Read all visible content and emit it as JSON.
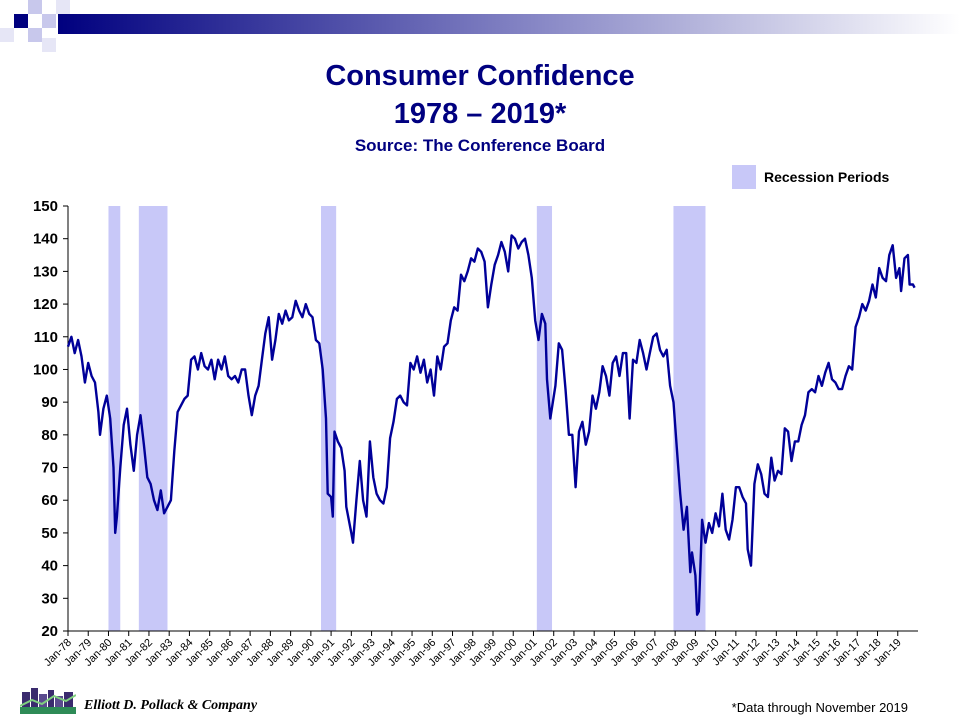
{
  "colors": {
    "title": "#000080",
    "line": "#000099",
    "recession": "#c8c8f8",
    "bar_gradient_start": "#00007f"
  },
  "header": {
    "title_line1": "Consumer Confidence",
    "title_line2": "1978 – 2019*",
    "subtitle": "Source: The Conference Board"
  },
  "legend": {
    "label": "Recession Periods"
  },
  "footer": {
    "company": "Elliott D. Pollack & Company",
    "note": "*Data through November 2019"
  },
  "chart_data": {
    "type": "line",
    "title": "Consumer Confidence 1978 – 2019*",
    "xlabel": "",
    "ylabel": "",
    "ylim": [
      20,
      150
    ],
    "xlim": [
      "1978-01",
      "2019-11"
    ],
    "yticks": [
      20,
      30,
      40,
      50,
      60,
      70,
      80,
      90,
      100,
      110,
      120,
      130,
      140,
      150
    ],
    "xtick_labels": [
      "Jan-78",
      "Jan-79",
      "Jan-80",
      "Jan-81",
      "Jan-82",
      "Jan-83",
      "Jan-84",
      "Jan-85",
      "Jan-86",
      "Jan-87",
      "Jan-88",
      "Jan-89",
      "Jan-90",
      "Jan-91",
      "Jan-92",
      "Jan-93",
      "Jan-94",
      "Jan-95",
      "Jan-96",
      "Jan-97",
      "Jan-98",
      "Jan-99",
      "Jan-00",
      "Jan-01",
      "Jan-02",
      "Jan-03",
      "Jan-04",
      "Jan-05",
      "Jan-06",
      "Jan-07",
      "Jan-08",
      "Jan-09",
      "Jan-10",
      "Jan-11",
      "Jan-12",
      "Jan-13",
      "Jan-14",
      "Jan-15",
      "Jan-16",
      "Jan-17",
      "Jan-18",
      "Jan-19"
    ],
    "grid": false,
    "legend": "top-right",
    "recessions": [
      {
        "start": "1980-01",
        "end": "1980-07"
      },
      {
        "start": "1981-07",
        "end": "1982-11"
      },
      {
        "start": "1990-07",
        "end": "1991-03"
      },
      {
        "start": "2001-03",
        "end": "2001-11"
      },
      {
        "start": "2007-12",
        "end": "2009-06"
      }
    ],
    "series": [
      {
        "points": [
          [
            "1978-01",
            107
          ],
          [
            "1978-03",
            110
          ],
          [
            "1978-05",
            105
          ],
          [
            "1978-07",
            109
          ],
          [
            "1978-09",
            104
          ],
          [
            "1978-11",
            96
          ],
          [
            "1979-01",
            102
          ],
          [
            "1979-03",
            98
          ],
          [
            "1979-05",
            96
          ],
          [
            "1979-07",
            87
          ],
          [
            "1979-08",
            80
          ],
          [
            "1979-10",
            88
          ],
          [
            "1979-12",
            92
          ],
          [
            "1980-02",
            85
          ],
          [
            "1980-04",
            70
          ],
          [
            "1980-05",
            50
          ],
          [
            "1980-06",
            55
          ],
          [
            "1980-08",
            70
          ],
          [
            "1980-10",
            83
          ],
          [
            "1980-12",
            88
          ],
          [
            "1981-02",
            77
          ],
          [
            "1981-04",
            69
          ],
          [
            "1981-06",
            80
          ],
          [
            "1981-08",
            86
          ],
          [
            "1981-10",
            77
          ],
          [
            "1981-12",
            67
          ],
          [
            "1982-02",
            65
          ],
          [
            "1982-04",
            60
          ],
          [
            "1982-06",
            57
          ],
          [
            "1982-08",
            63
          ],
          [
            "1982-10",
            56
          ],
          [
            "1982-12",
            58
          ],
          [
            "1983-02",
            60
          ],
          [
            "1983-04",
            75
          ],
          [
            "1983-06",
            87
          ],
          [
            "1983-08",
            89
          ],
          [
            "1983-10",
            91
          ],
          [
            "1983-12",
            92
          ],
          [
            "1984-02",
            103
          ],
          [
            "1984-04",
            104
          ],
          [
            "1984-06",
            100
          ],
          [
            "1984-08",
            105
          ],
          [
            "1984-10",
            101
          ],
          [
            "1984-12",
            100
          ],
          [
            "1985-02",
            103
          ],
          [
            "1985-04",
            97
          ],
          [
            "1985-06",
            103
          ],
          [
            "1985-08",
            100
          ],
          [
            "1985-10",
            104
          ],
          [
            "1985-12",
            98
          ],
          [
            "1986-02",
            97
          ],
          [
            "1986-04",
            98
          ],
          [
            "1986-06",
            96
          ],
          [
            "1986-08",
            100
          ],
          [
            "1986-10",
            100
          ],
          [
            "1986-12",
            92
          ],
          [
            "1987-02",
            86
          ],
          [
            "1987-04",
            92
          ],
          [
            "1987-06",
            95
          ],
          [
            "1987-08",
            103
          ],
          [
            "1987-10",
            111
          ],
          [
            "1987-12",
            116
          ],
          [
            "1988-02",
            103
          ],
          [
            "1988-04",
            109
          ],
          [
            "1988-06",
            117
          ],
          [
            "1988-08",
            114
          ],
          [
            "1988-10",
            118
          ],
          [
            "1988-12",
            115
          ],
          [
            "1989-02",
            116
          ],
          [
            "1989-04",
            121
          ],
          [
            "1989-06",
            118
          ],
          [
            "1989-08",
            116
          ],
          [
            "1989-10",
            120
          ],
          [
            "1989-12",
            117
          ],
          [
            "1990-02",
            116
          ],
          [
            "1990-04",
            109
          ],
          [
            "1990-06",
            108
          ],
          [
            "1990-08",
            100
          ],
          [
            "1990-10",
            85
          ],
          [
            "1990-11",
            62
          ],
          [
            "1991-01",
            61
          ],
          [
            "1991-02",
            55
          ],
          [
            "1991-03",
            81
          ],
          [
            "1991-05",
            78
          ],
          [
            "1991-07",
            76
          ],
          [
            "1991-09",
            69
          ],
          [
            "1991-10",
            58
          ],
          [
            "1992-01",
            50
          ],
          [
            "1992-02",
            47
          ],
          [
            "1992-04",
            60
          ],
          [
            "1992-06",
            72
          ],
          [
            "1992-08",
            60
          ],
          [
            "1992-10",
            55
          ],
          [
            "1992-12",
            78
          ],
          [
            "1993-02",
            67
          ],
          [
            "1993-04",
            62
          ],
          [
            "1993-06",
            60
          ],
          [
            "1993-08",
            59
          ],
          [
            "1993-10",
            64
          ],
          [
            "1993-12",
            79
          ],
          [
            "1994-02",
            84
          ],
          [
            "1994-04",
            91
          ],
          [
            "1994-06",
            92
          ],
          [
            "1994-08",
            90
          ],
          [
            "1994-10",
            89
          ],
          [
            "1994-12",
            102
          ],
          [
            "1995-02",
            100
          ],
          [
            "1995-04",
            104
          ],
          [
            "1995-06",
            99
          ],
          [
            "1995-08",
            103
          ],
          [
            "1995-10",
            96
          ],
          [
            "1995-12",
            100
          ],
          [
            "1996-02",
            92
          ],
          [
            "1996-04",
            104
          ],
          [
            "1996-06",
            100
          ],
          [
            "1996-08",
            107
          ],
          [
            "1996-10",
            108
          ],
          [
            "1996-12",
            115
          ],
          [
            "1997-02",
            119
          ],
          [
            "1997-04",
            118
          ],
          [
            "1997-06",
            129
          ],
          [
            "1997-08",
            127
          ],
          [
            "1997-10",
            130
          ],
          [
            "1997-12",
            134
          ],
          [
            "1998-02",
            133
          ],
          [
            "1998-04",
            137
          ],
          [
            "1998-06",
            136
          ],
          [
            "1998-08",
            133
          ],
          [
            "1998-10",
            119
          ],
          [
            "1998-12",
            126
          ],
          [
            "1999-02",
            132
          ],
          [
            "1999-04",
            135
          ],
          [
            "1999-06",
            139
          ],
          [
            "1999-08",
            136
          ],
          [
            "1999-10",
            130
          ],
          [
            "1999-12",
            141
          ],
          [
            "2000-02",
            140
          ],
          [
            "2000-04",
            137
          ],
          [
            "2000-06",
            139
          ],
          [
            "2000-08",
            140
          ],
          [
            "2000-10",
            135
          ],
          [
            "2000-12",
            128
          ],
          [
            "2001-02",
            115
          ],
          [
            "2001-04",
            109
          ],
          [
            "2001-06",
            117
          ],
          [
            "2001-08",
            114
          ],
          [
            "2001-09",
            97
          ],
          [
            "2001-11",
            85
          ],
          [
            "2002-02",
            95
          ],
          [
            "2002-04",
            108
          ],
          [
            "2002-06",
            106
          ],
          [
            "2002-08",
            94
          ],
          [
            "2002-10",
            80
          ],
          [
            "2002-12",
            80
          ],
          [
            "2003-02",
            64
          ],
          [
            "2003-04",
            81
          ],
          [
            "2003-06",
            84
          ],
          [
            "2003-08",
            77
          ],
          [
            "2003-10",
            81
          ],
          [
            "2003-12",
            92
          ],
          [
            "2004-02",
            88
          ],
          [
            "2004-04",
            93
          ],
          [
            "2004-06",
            101
          ],
          [
            "2004-08",
            98
          ],
          [
            "2004-10",
            92
          ],
          [
            "2004-12",
            102
          ],
          [
            "2005-02",
            104
          ],
          [
            "2005-04",
            98
          ],
          [
            "2005-06",
            105
          ],
          [
            "2005-08",
            105
          ],
          [
            "2005-10",
            85
          ],
          [
            "2005-12",
            103
          ],
          [
            "2006-02",
            102
          ],
          [
            "2006-04",
            109
          ],
          [
            "2006-06",
            105
          ],
          [
            "2006-08",
            100
          ],
          [
            "2006-10",
            105
          ],
          [
            "2006-12",
            110
          ],
          [
            "2007-02",
            111
          ],
          [
            "2007-04",
            106
          ],
          [
            "2007-06",
            104
          ],
          [
            "2007-08",
            106
          ],
          [
            "2007-10",
            95
          ],
          [
            "2007-12",
            90
          ],
          [
            "2008-02",
            76
          ],
          [
            "2008-04",
            62
          ],
          [
            "2008-06",
            51
          ],
          [
            "2008-08",
            58
          ],
          [
            "2008-10",
            38
          ],
          [
            "2008-11",
            44
          ],
          [
            "2009-01",
            37
          ],
          [
            "2009-02",
            25
          ],
          [
            "2009-03",
            26
          ],
          [
            "2009-05",
            54
          ],
          [
            "2009-07",
            47
          ],
          [
            "2009-09",
            53
          ],
          [
            "2009-11",
            50
          ],
          [
            "2010-01",
            56
          ],
          [
            "2010-03",
            52
          ],
          [
            "2010-05",
            62
          ],
          [
            "2010-07",
            51
          ],
          [
            "2010-09",
            48
          ],
          [
            "2010-11",
            54
          ],
          [
            "2011-01",
            64
          ],
          [
            "2011-03",
            64
          ],
          [
            "2011-05",
            61
          ],
          [
            "2011-07",
            59
          ],
          [
            "2011-08",
            45
          ],
          [
            "2011-10",
            40
          ],
          [
            "2011-12",
            65
          ],
          [
            "2012-02",
            71
          ],
          [
            "2012-04",
            68
          ],
          [
            "2012-06",
            62
          ],
          [
            "2012-08",
            61
          ],
          [
            "2012-10",
            73
          ],
          [
            "2012-12",
            66
          ],
          [
            "2013-02",
            69
          ],
          [
            "2013-04",
            68
          ],
          [
            "2013-06",
            82
          ],
          [
            "2013-08",
            81
          ],
          [
            "2013-10",
            72
          ],
          [
            "2013-12",
            78
          ],
          [
            "2014-02",
            78
          ],
          [
            "2014-04",
            83
          ],
          [
            "2014-06",
            86
          ],
          [
            "2014-08",
            93
          ],
          [
            "2014-10",
            94
          ],
          [
            "2014-12",
            93
          ],
          [
            "2015-02",
            98
          ],
          [
            "2015-04",
            95
          ],
          [
            "2015-06",
            99
          ],
          [
            "2015-08",
            102
          ],
          [
            "2015-10",
            97
          ],
          [
            "2015-12",
            96
          ],
          [
            "2016-02",
            94
          ],
          [
            "2016-04",
            94
          ],
          [
            "2016-06",
            98
          ],
          [
            "2016-08",
            101
          ],
          [
            "2016-10",
            100
          ],
          [
            "2016-12",
            113
          ],
          [
            "2017-02",
            116
          ],
          [
            "2017-04",
            120
          ],
          [
            "2017-06",
            118
          ],
          [
            "2017-08",
            121
          ],
          [
            "2017-10",
            126
          ],
          [
            "2017-12",
            122
          ],
          [
            "2018-02",
            131
          ],
          [
            "2018-04",
            128
          ],
          [
            "2018-06",
            127
          ],
          [
            "2018-08",
            135
          ],
          [
            "2018-10",
            138
          ],
          [
            "2018-12",
            128
          ],
          [
            "2019-02",
            131
          ],
          [
            "2019-03",
            124
          ],
          [
            "2019-05",
            134
          ],
          [
            "2019-07",
            135
          ],
          [
            "2019-08",
            126
          ],
          [
            "2019-10",
            126
          ],
          [
            "2019-11",
            125
          ]
        ]
      }
    ]
  }
}
